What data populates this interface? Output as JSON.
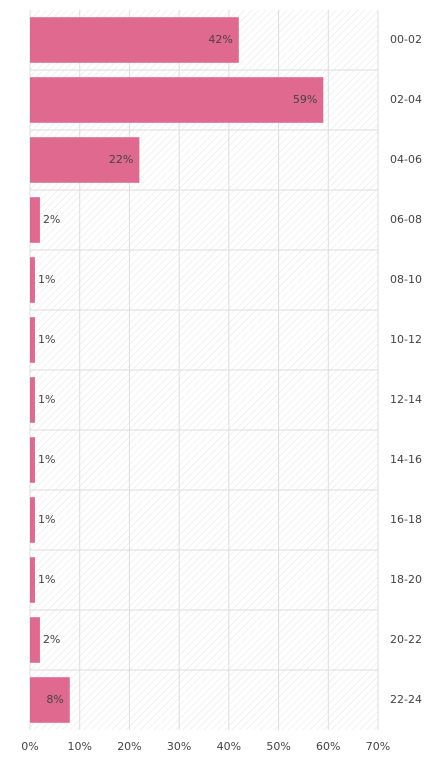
{
  "chart_data": {
    "type": "bar",
    "orientation": "horizontal",
    "categories": [
      "00-02",
      "02-04",
      "04-06",
      "06-08",
      "08-10",
      "10-12",
      "12-14",
      "14-16",
      "16-18",
      "18-20",
      "20-22",
      "22-24"
    ],
    "values": [
      42,
      59,
      22,
      2,
      1,
      1,
      1,
      1,
      1,
      1,
      2,
      8
    ],
    "value_labels": [
      "42%",
      "59%",
      "22%",
      "2%",
      "1%",
      "1%",
      "1%",
      "1%",
      "1%",
      "1%",
      "2%",
      "8%"
    ],
    "color": "#e0698f",
    "xlim": [
      0,
      70
    ],
    "xticks": [
      {
        "value": 0,
        "label": "0%"
      },
      {
        "value": 10,
        "label": "10%"
      },
      {
        "value": 20,
        "label": "20%"
      },
      {
        "value": 30,
        "label": "30%"
      },
      {
        "value": 40,
        "label": "40%"
      },
      {
        "value": 50,
        "label": "50%"
      },
      {
        "value": 60,
        "label": "60%"
      },
      {
        "value": 70,
        "label": "70%"
      }
    ],
    "grid": true
  }
}
